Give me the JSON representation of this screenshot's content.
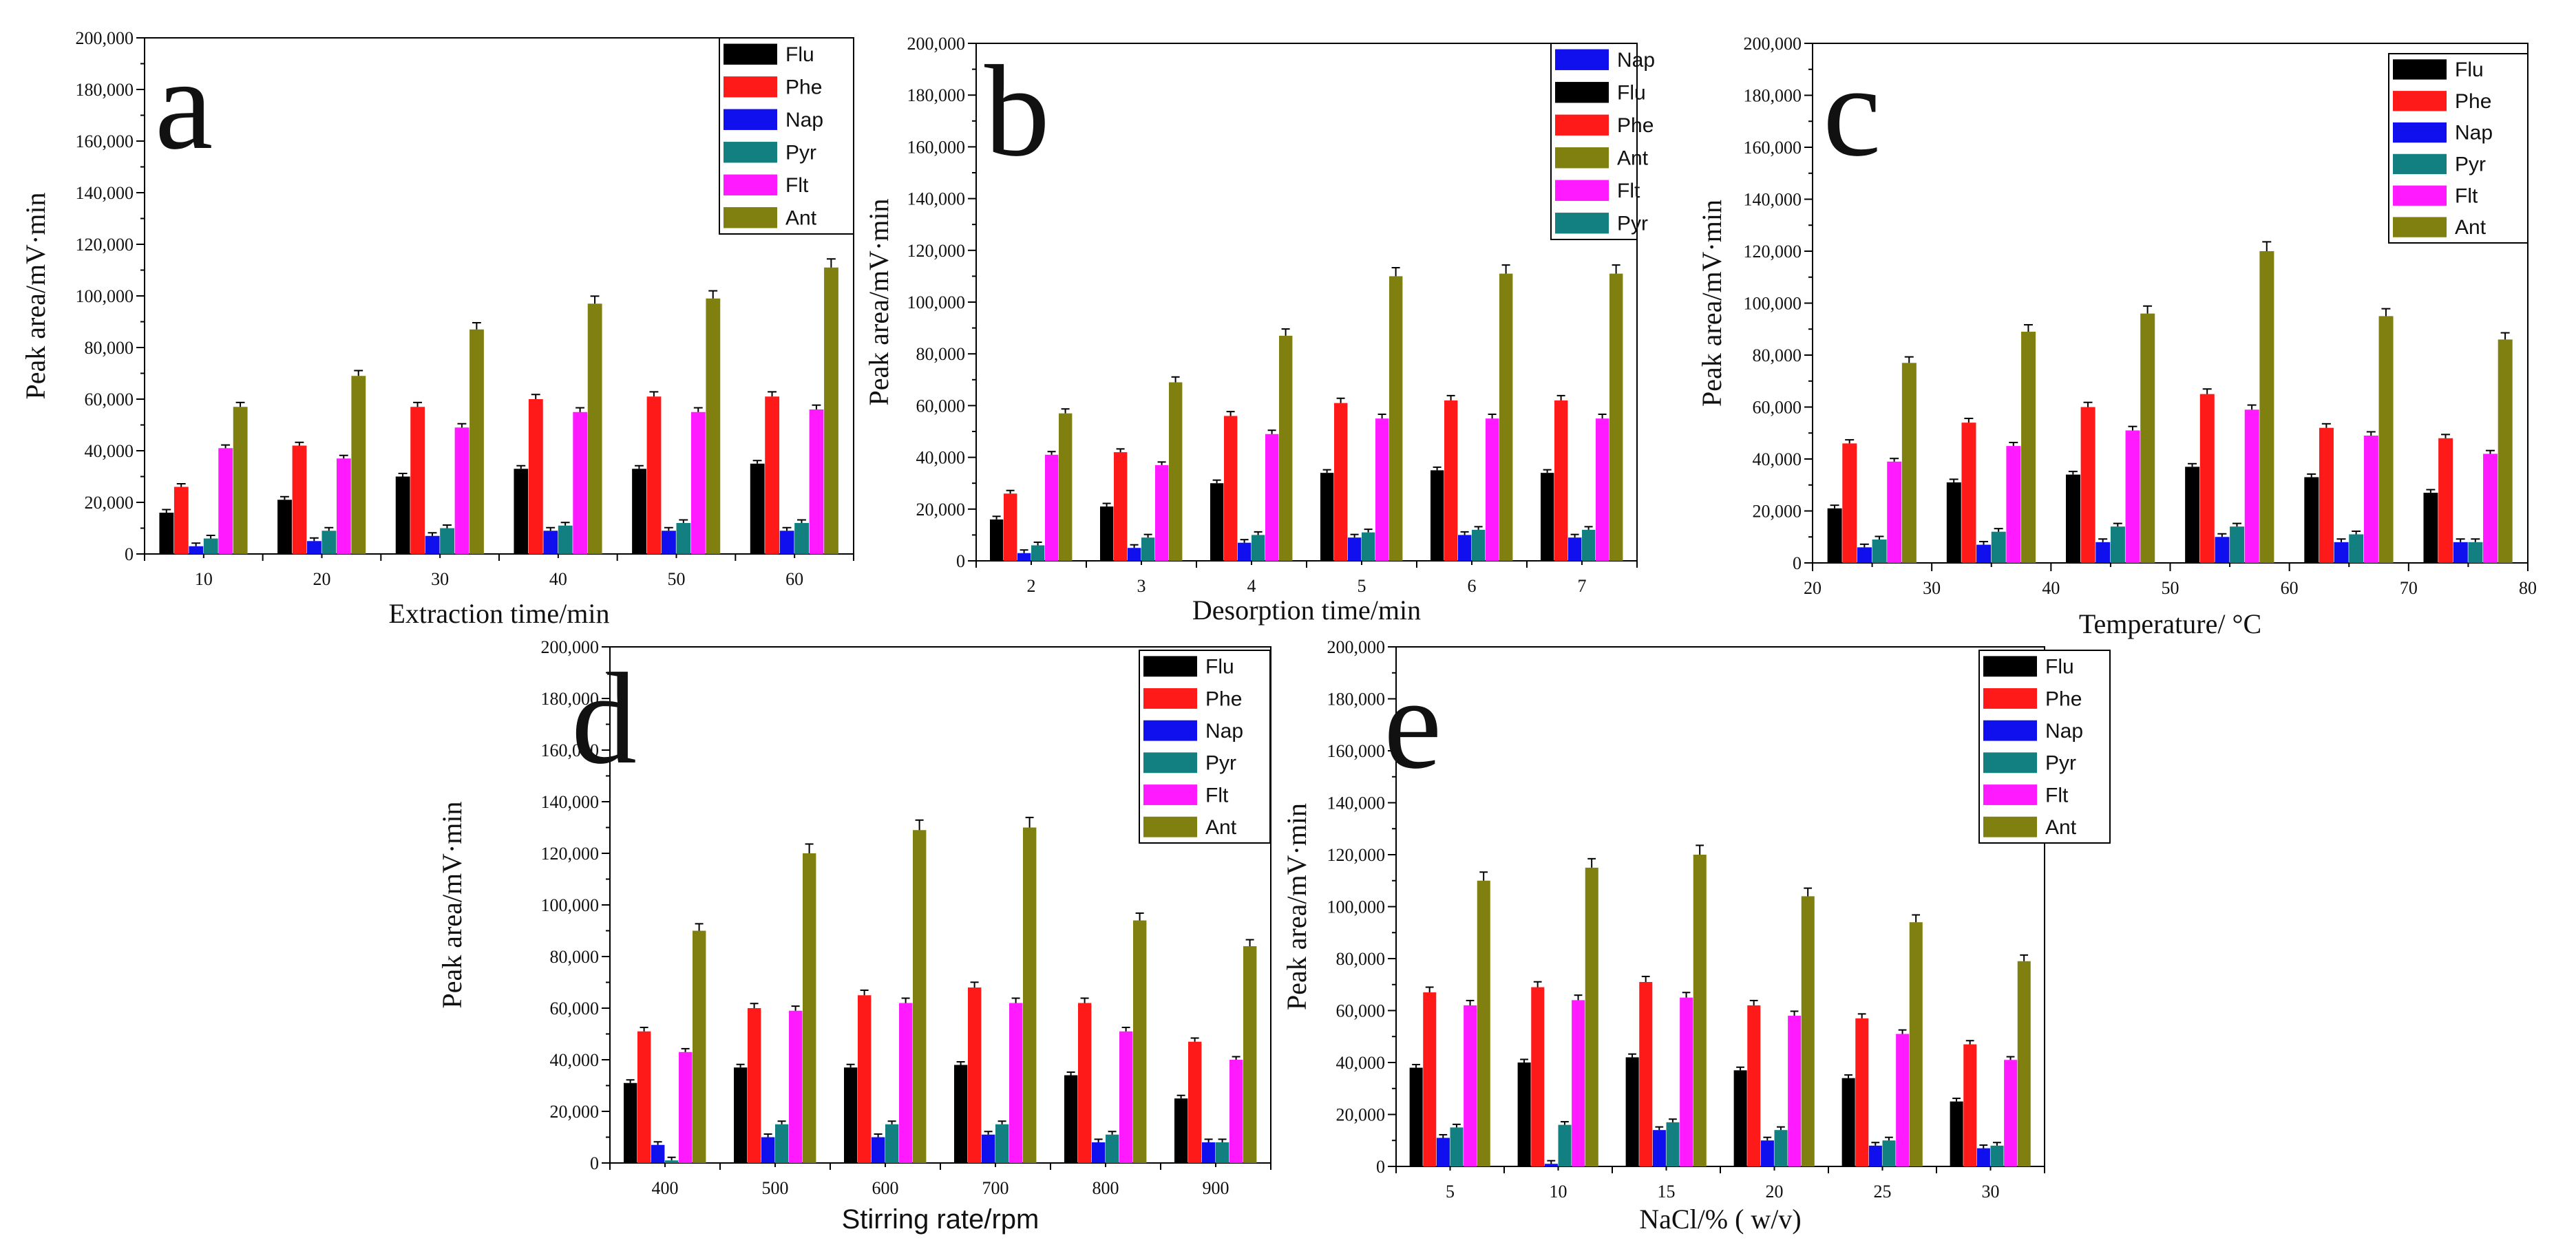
{
  "colors": {
    "Flu": "#000000",
    "Phe": "#ff1a1a",
    "Nap": "#1010ee",
    "Pyr": "#128080",
    "Flt": "#ff1aff",
    "Ant": "#808010"
  },
  "chart_data": [
    {
      "type": "bar",
      "panel": "a",
      "xlabel": "Extraction time/min",
      "ylabel": "Peak area/mV·min",
      "ylim": [
        0,
        200000
      ],
      "yticks": [
        "0",
        "20,000",
        "40,000",
        "60,000",
        "80,000",
        "100,000",
        "120,000",
        "140,000",
        "160,000",
        "180,000",
        "200,000"
      ],
      "categories": [
        "10",
        "20",
        "30",
        "40",
        "50",
        "60"
      ],
      "legend_order": [
        "Flu",
        "Phe",
        "Nap",
        "Pyr",
        "Flt",
        "Ant"
      ],
      "series": [
        {
          "name": "Flu",
          "values": [
            16000,
            21000,
            30000,
            33000,
            33000,
            35000
          ]
        },
        {
          "name": "Phe",
          "values": [
            26000,
            42000,
            57000,
            60000,
            61000,
            61000
          ]
        },
        {
          "name": "Nap",
          "values": [
            3000,
            5000,
            7000,
            9000,
            9000,
            9000
          ]
        },
        {
          "name": "Pyr",
          "values": [
            6000,
            9000,
            10000,
            11000,
            12000,
            12000
          ]
        },
        {
          "name": "Flt",
          "values": [
            41000,
            37000,
            49000,
            55000,
            55000,
            56000
          ]
        },
        {
          "name": "Ant",
          "values": [
            57000,
            69000,
            87000,
            97000,
            99000,
            111000
          ]
        }
      ]
    },
    {
      "type": "bar",
      "panel": "b",
      "xlabel": "Desorption time/min",
      "ylabel": "Peak area/mV·min",
      "ylim": [
        0,
        200000
      ],
      "yticks": [
        "0",
        "20,000",
        "40,000",
        "60,000",
        "80,000",
        "100,000",
        "120,000",
        "140,000",
        "160,000",
        "180,000",
        "200,000"
      ],
      "categories": [
        "2",
        "3",
        "4",
        "5",
        "6",
        "7"
      ],
      "legend_order": [
        "Nap",
        "Flu",
        "Phe",
        "Ant",
        "Flt",
        "Pyr"
      ],
      "series": [
        {
          "name": "Flu",
          "values": [
            16000,
            21000,
            30000,
            34000,
            35000,
            34000
          ]
        },
        {
          "name": "Phe",
          "values": [
            26000,
            42000,
            56000,
            61000,
            62000,
            62000
          ]
        },
        {
          "name": "Nap",
          "values": [
            3000,
            5000,
            7000,
            9000,
            10000,
            9000
          ]
        },
        {
          "name": "Pyr",
          "values": [
            6000,
            9000,
            10000,
            11000,
            12000,
            12000
          ]
        },
        {
          "name": "Flt",
          "values": [
            41000,
            37000,
            49000,
            55000,
            55000,
            55000
          ]
        },
        {
          "name": "Ant",
          "values": [
            57000,
            69000,
            87000,
            110000,
            111000,
            111000
          ]
        }
      ]
    },
    {
      "type": "bar",
      "panel": "c",
      "xlabel": "Temperature/ °C",
      "ylabel": "Peak area/mV·min",
      "ylim": [
        0,
        200000
      ],
      "xlim": [
        20,
        80
      ],
      "yticks": [
        "0",
        "20,000",
        "40,000",
        "60,000",
        "80,000",
        "100,000",
        "120,000",
        "140,000",
        "160,000",
        "180,000",
        "200,000"
      ],
      "xticks": [
        "20",
        "30",
        "40",
        "50",
        "60",
        "70",
        "80"
      ],
      "categories": [
        "25",
        "35",
        "45",
        "55",
        "65",
        "75"
      ],
      "legend_order": [
        "Flu",
        "Phe",
        "Nap",
        "Pyr",
        "Flt",
        "Ant"
      ],
      "series": [
        {
          "name": "Flu",
          "values": [
            21000,
            31000,
            34000,
            37000,
            33000,
            27000
          ]
        },
        {
          "name": "Phe",
          "values": [
            46000,
            54000,
            60000,
            65000,
            52000,
            48000
          ]
        },
        {
          "name": "Nap",
          "values": [
            6000,
            7000,
            8000,
            10000,
            8000,
            8000
          ]
        },
        {
          "name": "Pyr",
          "values": [
            9000,
            12000,
            14000,
            14000,
            11000,
            8000
          ]
        },
        {
          "name": "Flt",
          "values": [
            39000,
            45000,
            51000,
            59000,
            49000,
            42000
          ]
        },
        {
          "name": "Ant",
          "values": [
            77000,
            89000,
            96000,
            120000,
            95000,
            86000
          ]
        }
      ]
    },
    {
      "type": "bar",
      "panel": "d",
      "xlabel": "Stirring rate/rpm",
      "ylabel": "Peak area/mV·min",
      "ylim": [
        0,
        200000
      ],
      "yticks": [
        "0",
        "20,000",
        "40,000",
        "60,000",
        "80,000",
        "100,000",
        "120,000",
        "140,000",
        "160,000",
        "180,000",
        "200,000"
      ],
      "categories": [
        "400",
        "500",
        "600",
        "700",
        "800",
        "900"
      ],
      "legend_order": [
        "Flu",
        "Phe",
        "Nap",
        "Pyr",
        "Flt",
        "Ant"
      ],
      "series": [
        {
          "name": "Flu",
          "values": [
            31000,
            37000,
            37000,
            38000,
            34000,
            25000
          ]
        },
        {
          "name": "Phe",
          "values": [
            51000,
            60000,
            65000,
            68000,
            62000,
            47000
          ]
        },
        {
          "name": "Nap",
          "values": [
            7000,
            10000,
            10000,
            11000,
            8000,
            8000
          ]
        },
        {
          "name": "Pyr",
          "values": [
            1000,
            15000,
            15000,
            15000,
            11000,
            8000
          ]
        },
        {
          "name": "Flt",
          "values": [
            43000,
            59000,
            62000,
            62000,
            51000,
            40000
          ]
        },
        {
          "name": "Ant",
          "values": [
            90000,
            120000,
            129000,
            130000,
            94000,
            84000
          ]
        }
      ]
    },
    {
      "type": "bar",
      "panel": "e",
      "xlabel": "NaCl/% ( w/v)",
      "ylabel": "Peak area/mV·min",
      "ylim": [
        0,
        200000
      ],
      "yticks": [
        "0",
        "20,000",
        "40,000",
        "60,000",
        "80,000",
        "100,000",
        "120,000",
        "140,000",
        "160,000",
        "180,000",
        "200,000"
      ],
      "categories": [
        "5",
        "10",
        "15",
        "20",
        "25",
        "30"
      ],
      "legend_order": [
        "Flu",
        "Phe",
        "Nap",
        "Pyr",
        "Flt",
        "Ant"
      ],
      "series": [
        {
          "name": "Flu",
          "values": [
            38000,
            40000,
            42000,
            37000,
            34000,
            25000
          ]
        },
        {
          "name": "Phe",
          "values": [
            67000,
            69000,
            71000,
            62000,
            57000,
            47000
          ]
        },
        {
          "name": "Nap",
          "values": [
            11000,
            1000,
            14000,
            10000,
            8000,
            7000
          ]
        },
        {
          "name": "Pyr",
          "values": [
            15000,
            16000,
            17000,
            14000,
            10000,
            8000
          ]
        },
        {
          "name": "Flt",
          "values": [
            62000,
            64000,
            65000,
            58000,
            51000,
            41000
          ]
        },
        {
          "name": "Ant",
          "values": [
            110000,
            115000,
            120000,
            104000,
            94000,
            79000
          ]
        }
      ]
    }
  ]
}
